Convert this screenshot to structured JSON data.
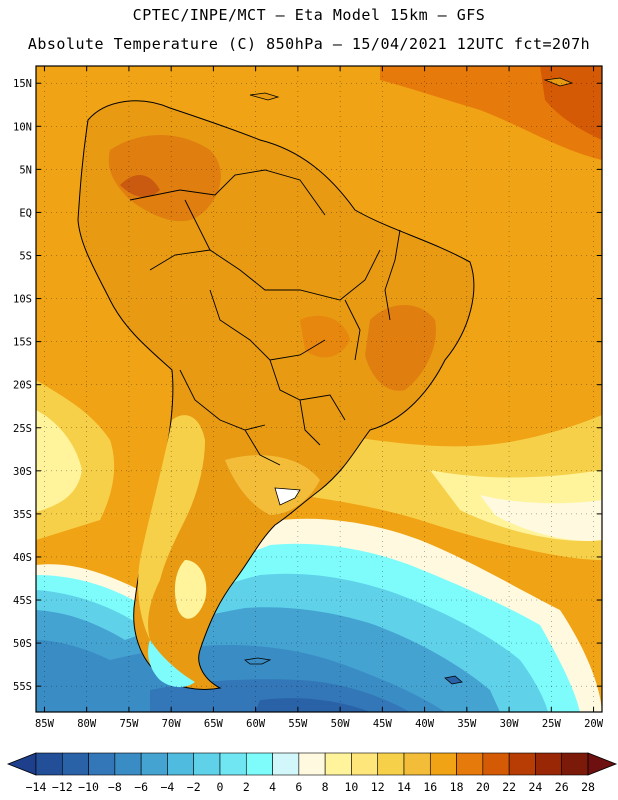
{
  "title_line1": "CPTEC/INPE/MCT —  Eta Model 15km — GFS",
  "title_line2": "Absolute Temperature (C) 850hPa — 15/04/2021 12UTC fct=207h",
  "map": {
    "extent": {
      "lon_min": -86,
      "lon_max": -19,
      "lat_min": -58,
      "lat_max": 17
    },
    "lat_ticks": [
      {
        "value": 15,
        "label": "15N"
      },
      {
        "value": 10,
        "label": "10N"
      },
      {
        "value": 5,
        "label": "5N"
      },
      {
        "value": 0,
        "label": "EQ"
      },
      {
        "value": -5,
        "label": "5S"
      },
      {
        "value": -10,
        "label": "10S"
      },
      {
        "value": -15,
        "label": "15S"
      },
      {
        "value": -20,
        "label": "20S"
      },
      {
        "value": -25,
        "label": "25S"
      },
      {
        "value": -30,
        "label": "30S"
      },
      {
        "value": -35,
        "label": "35S"
      },
      {
        "value": -40,
        "label": "40S"
      },
      {
        "value": -45,
        "label": "45S"
      },
      {
        "value": -50,
        "label": "50S"
      },
      {
        "value": -55,
        "label": "55S"
      }
    ],
    "lon_ticks": [
      {
        "value": -85,
        "label": "85W"
      },
      {
        "value": -80,
        "label": "80W"
      },
      {
        "value": -75,
        "label": "75W"
      },
      {
        "value": -70,
        "label": "70W"
      },
      {
        "value": -65,
        "label": "65W"
      },
      {
        "value": -60,
        "label": "60W"
      },
      {
        "value": -55,
        "label": "55W"
      },
      {
        "value": -50,
        "label": "50W"
      },
      {
        "value": -45,
        "label": "45W"
      },
      {
        "value": -40,
        "label": "40W"
      },
      {
        "value": -35,
        "label": "35W"
      },
      {
        "value": -30,
        "label": "30W"
      },
      {
        "value": -25,
        "label": "25W"
      },
      {
        "value": -20,
        "label": "20W"
      }
    ]
  },
  "colorbar": {
    "levels": [
      -14,
      -12,
      -10,
      -8,
      -6,
      -4,
      -2,
      0,
      2,
      4,
      6,
      8,
      10,
      12,
      14,
      16,
      18,
      20,
      22,
      24,
      26,
      28
    ],
    "colors": [
      "#1e3f8c",
      "#234f99",
      "#2a62a8",
      "#3377b8",
      "#3a8dc4",
      "#45a3d2",
      "#4fbbdf",
      "#5fd2ea",
      "#6fe6f2",
      "#7efcfc",
      "#d2f7fa",
      "#fff9e0",
      "#fff49c",
      "#ffe67a",
      "#f7d04a",
      "#f3bd3a",
      "#f0a314",
      "#e67a0a",
      "#d55a06",
      "#b73d04",
      "#992605",
      "#7c1a0a",
      "#6e1010"
    ]
  },
  "colors": {
    "ocean_tropical": "#f0a314",
    "land_base": "#e79a12",
    "border": "#000000"
  }
}
